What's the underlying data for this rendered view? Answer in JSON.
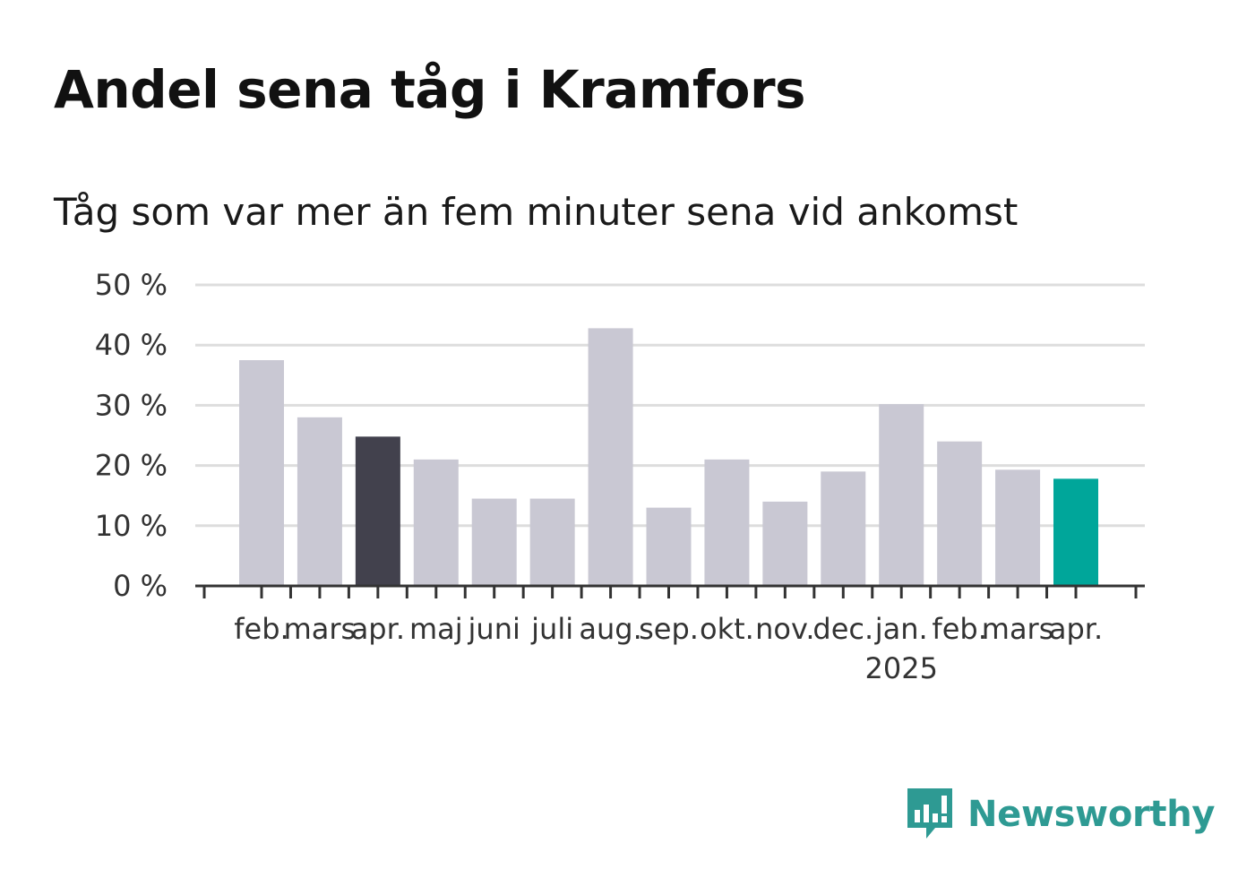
{
  "header": {
    "title": "Andel sena tåg i Kramfors",
    "subtitle": "Tåg som var mer än fem minuter sena vid ankomst"
  },
  "chart_data": {
    "type": "bar",
    "categories": [
      "feb.",
      "mars",
      "apr.",
      "maj",
      "juni",
      "juli",
      "aug.",
      "sep.",
      "okt.",
      "nov.",
      "dec.",
      "jan.",
      "feb.",
      "mars",
      "apr."
    ],
    "year_labels": [
      {
        "index": 11,
        "label": "2025"
      }
    ],
    "values": [
      37.5,
      28,
      24.8,
      21,
      14.5,
      14.5,
      42.8,
      13,
      21,
      14,
      19,
      30.2,
      24,
      19.3,
      17.8
    ],
    "highlights": [
      {
        "index": 2,
        "color": "#42414d"
      },
      {
        "index": 14,
        "color": "#00a69a"
      }
    ],
    "ylim": [
      0,
      50
    ],
    "yticks": [
      0,
      10,
      20,
      30,
      40,
      50
    ],
    "ytick_suffix": " %",
    "grid": true,
    "colors": {
      "default_bar": "#c9c8d3",
      "highlight_dark": "#42414d",
      "highlight_latest": "#00a69a",
      "axis": "#333333",
      "grid": "#dddddd"
    }
  },
  "logo": {
    "text": "Newsworthy",
    "icon": "newsworthy-bar-icon",
    "color": "#2e9a93"
  }
}
